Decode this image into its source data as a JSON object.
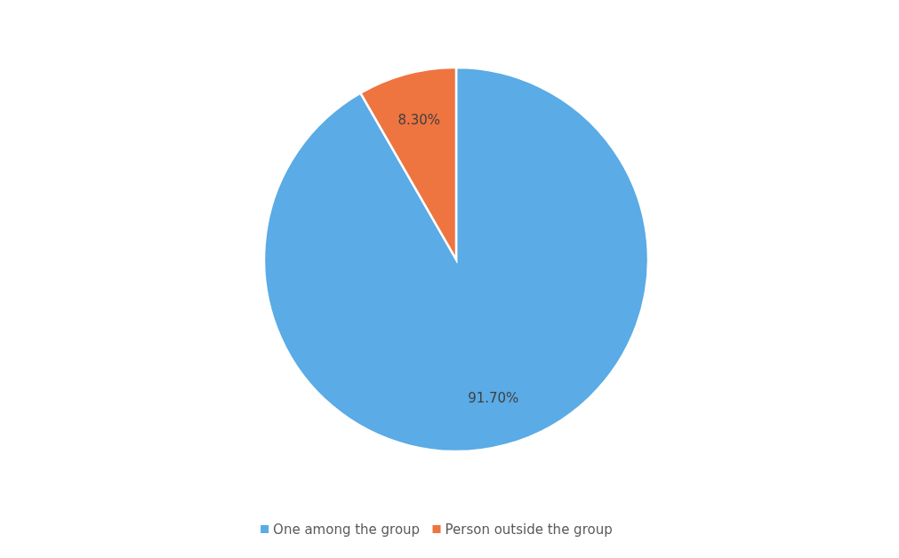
{
  "chart_data": {
    "type": "pie",
    "categories": [
      "One among the group",
      "Person outside the group"
    ],
    "values": [
      91.7,
      8.3
    ],
    "colors": [
      "#5aabe6",
      "#ee7440"
    ],
    "value_labels": [
      "91.70%",
      "8.30%"
    ],
    "legend": "bottom"
  }
}
